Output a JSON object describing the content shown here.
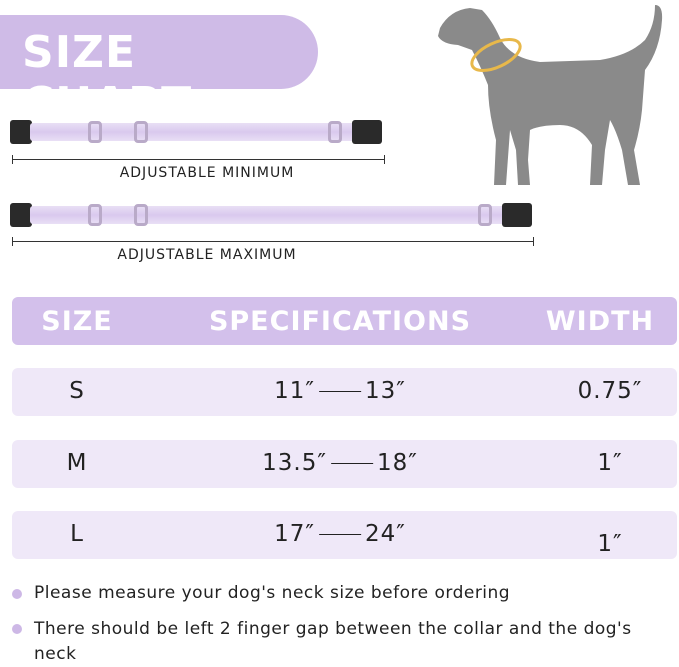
{
  "banner": {
    "title": "SIZE CHART"
  },
  "diagram": {
    "min_label": "ADJUSTABLE MINIMUM",
    "max_label": "ADJUSTABLE MAXIMUM",
    "icon": "dog-silhouette-with-collar"
  },
  "colors": {
    "accent": "#cfbbe7",
    "row_bg": "#efe8f8",
    "dog": "#8a8a8a",
    "collar_on_dog": "#e8b84a"
  },
  "table": {
    "headers": [
      "SIZE",
      "SPECIFICATIONS",
      "WIDTH"
    ],
    "rows": [
      {
        "size": "S",
        "min": "11″",
        "max": "13″",
        "width": "0.75″"
      },
      {
        "size": "M",
        "min": "13.5″",
        "max": "18″",
        "width": "1″"
      },
      {
        "size": "L",
        "min": "17″",
        "max": "24″",
        "width": "1″"
      }
    ]
  },
  "notes": [
    "Please measure your dog's neck size before ordering",
    "There should be left 2 finger gap between the collar and the dog's neck"
  ]
}
